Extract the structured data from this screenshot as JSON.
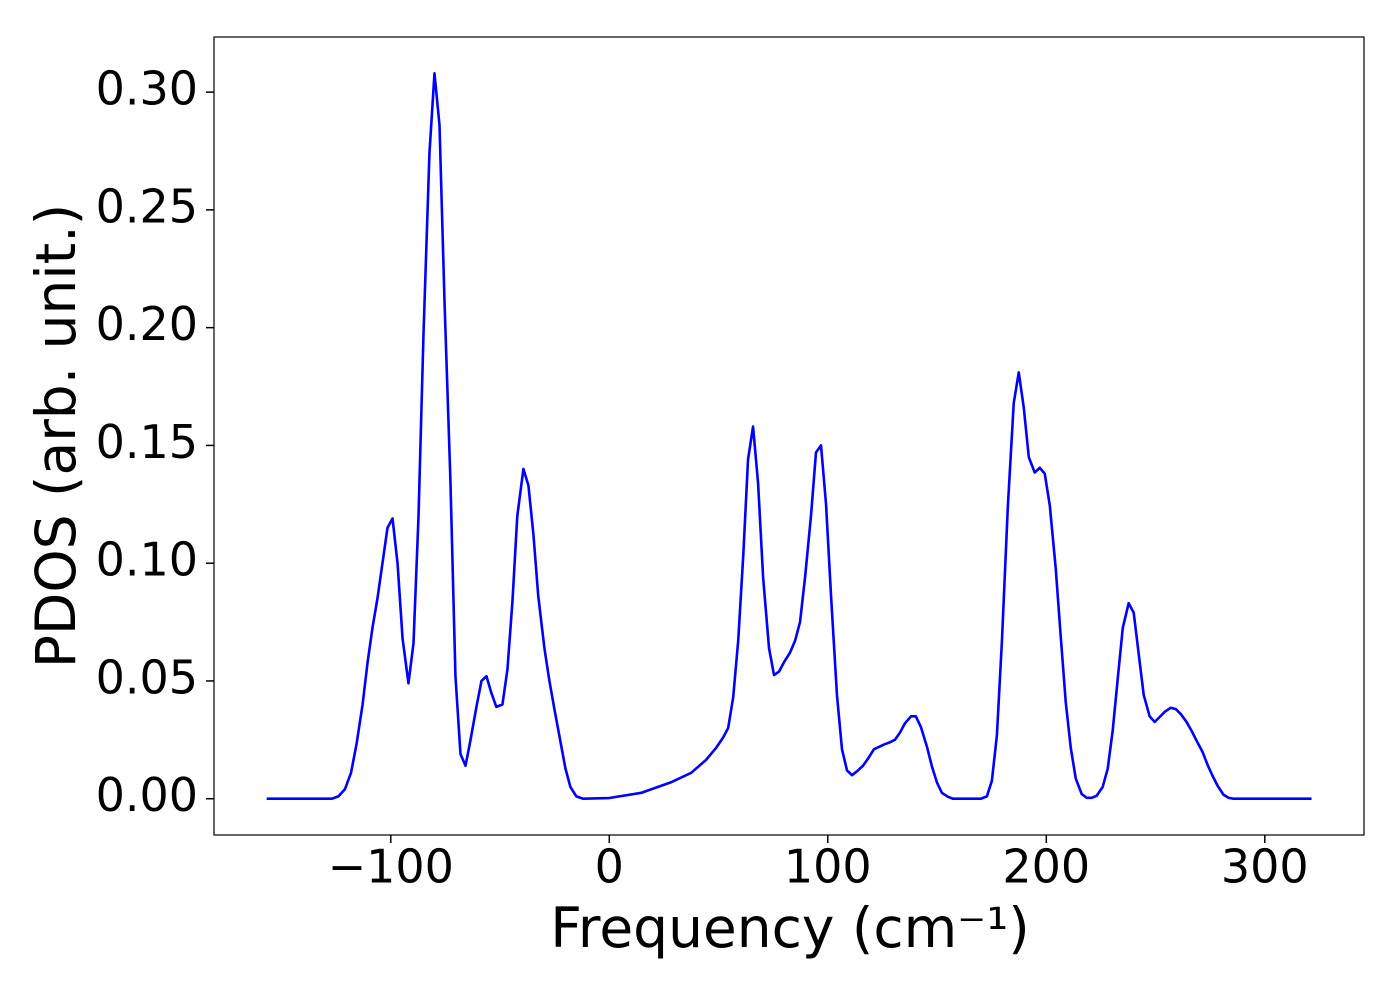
{
  "chart_data": {
    "type": "line",
    "xlabel": "Frequency (cm⁻¹)",
    "ylabel": "PDOS (arb. unit.)",
    "x": [
      -156.8,
      -127,
      -124,
      -121,
      -118.2,
      -115.7,
      -112.9,
      -110.6,
      -108.3,
      -106.1,
      -103.8,
      -101.5,
      -99.2,
      -96.9,
      -94.6,
      -91.9,
      -89.6,
      -87.3,
      -85,
      -82.3,
      -80,
      -77.7,
      -75.4,
      -72.7,
      -70.4,
      -68.1,
      -65.8,
      -63.5,
      -60.8,
      -58.5,
      -56.2,
      -54,
      -51.7,
      -48.9,
      -46.6,
      -44.3,
      -42.1,
      -39.3,
      -37,
      -34.7,
      -32.5,
      -29.7,
      -27.4,
      -25.1,
      -22.9,
      -20.1,
      -17.8,
      -15.1,
      -11.9,
      0,
      14.6,
      28.3,
      37.5,
      44.3,
      48.9,
      52.1,
      54.4,
      56.7,
      59,
      61.3,
      63.5,
      65.8,
      68.1,
      70.4,
      73.1,
      75.4,
      77.7,
      80,
      82.7,
      85,
      87.3,
      89.6,
      92.3,
      94.6,
      96.9,
      99.2,
      101.5,
      104.2,
      106.5,
      108.8,
      111.1,
      113.8,
      116.1,
      118.4,
      121.1,
      123.4,
      125.7,
      128.5,
      130.7,
      133,
      135.3,
      138.1,
      140.3,
      142.6,
      145.4,
      147.7,
      150,
      152.2,
      155,
      157.3,
      170,
      172.8,
      175.1,
      177.4,
      179.7,
      182.4,
      185.1,
      187.4,
      189.7,
      192,
      194.7,
      197,
      199.3,
      201.6,
      204.3,
      206.6,
      208.9,
      211.2,
      213.5,
      216.2,
      218.5,
      220.8,
      223.1,
      225.8,
      228.1,
      230.4,
      232.7,
      235,
      237.7,
      240,
      242.3,
      244.6,
      247.3,
      249.6,
      251.9,
      254.2,
      256.9,
      259.2,
      261.5,
      264.2,
      266.5,
      268.8,
      271.5,
      273.8,
      276.1,
      278.4,
      281.1,
      283.4,
      285.7,
      321.4
    ],
    "series": [
      {
        "color": "#0000ff",
        "values": [
          0,
          0,
          0.001,
          0.004,
          0.011,
          0.023,
          0.04,
          0.058,
          0.073,
          0.085,
          0.1,
          0.115,
          0.119,
          0.1,
          0.068,
          0.049,
          0.066,
          0.12,
          0.198,
          0.274,
          0.308,
          0.286,
          0.211,
          0.135,
          0.052,
          0.019,
          0.014,
          0.025,
          0.039,
          0.05,
          0.052,
          0.045,
          0.039,
          0.04,
          0.055,
          0.084,
          0.12,
          0.14,
          0.133,
          0.112,
          0.086,
          0.064,
          0.05,
          0.038,
          0.027,
          0.013,
          0.005,
          0.001,
          0,
          0.0003,
          0.0025,
          0.007,
          0.011,
          0.0165,
          0.0216,
          0.026,
          0.03,
          0.043,
          0.067,
          0.103,
          0.144,
          0.158,
          0.134,
          0.094,
          0.064,
          0.0525,
          0.054,
          0.058,
          0.062,
          0.067,
          0.075,
          0.094,
          0.12,
          0.147,
          0.15,
          0.125,
          0.086,
          0.044,
          0.021,
          0.012,
          0.01,
          0.012,
          0.014,
          0.017,
          0.021,
          0.022,
          0.023,
          0.024,
          0.025,
          0.028,
          0.032,
          0.035,
          0.035,
          0.0305,
          0.022,
          0.0136,
          0.0068,
          0.0025,
          0.0008,
          0,
          0,
          0.001,
          0.0076,
          0.027,
          0.067,
          0.124,
          0.168,
          0.181,
          0.166,
          0.145,
          0.1385,
          0.1405,
          0.138,
          0.1245,
          0.098,
          0.069,
          0.041,
          0.0216,
          0.0085,
          0.002,
          0.0004,
          0.0004,
          0.0013,
          0.005,
          0.0127,
          0.029,
          0.051,
          0.0725,
          0.083,
          0.079,
          0.0614,
          0.044,
          0.035,
          0.0326,
          0.0347,
          0.0369,
          0.0386,
          0.0381,
          0.036,
          0.0326,
          0.0288,
          0.0246,
          0.0199,
          0.0144,
          0.0097,
          0.0055,
          0.0017,
          0.0004,
          0,
          0
        ]
      }
    ],
    "xlim": [
      -180.9,
      345.4
    ],
    "ylim": [
      -0.0154,
      0.3234
    ],
    "xticks": [
      {
        "value": -100,
        "label": "−100"
      },
      0,
      100,
      200,
      300
    ],
    "yticks": [
      {
        "value": 0,
        "label": "0.00"
      },
      {
        "value": 0.05,
        "label": "0.05"
      },
      {
        "value": 0.1,
        "label": "0.10"
      },
      {
        "value": 0.15,
        "label": "0.15"
      },
      {
        "value": 0.2,
        "label": "0.20"
      },
      {
        "value": 0.25,
        "label": "0.25"
      },
      {
        "value": 0.3,
        "label": "0.30"
      }
    ],
    "grid": false
  }
}
